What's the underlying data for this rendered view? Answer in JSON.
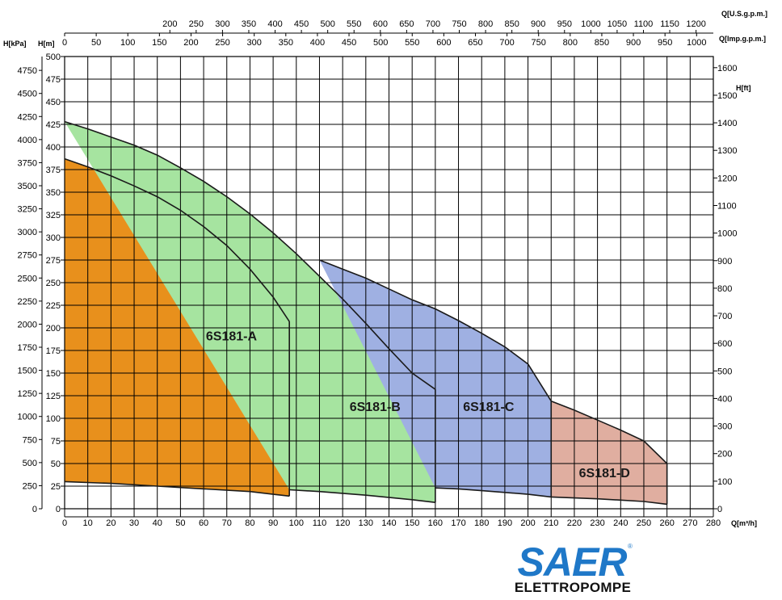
{
  "axes": {
    "h_kpa_label": "H[kPa]",
    "h_m_label": "H[m]",
    "h_ft_label": "H[ft]",
    "q_m3h_label": "Q[m³/h]",
    "q_usgpm_label": "Q[U.S.g.p.m.]",
    "q_impgpm_label": "Q[Imp.g.p.m.]"
  },
  "chart_data": {
    "type": "area",
    "title": "",
    "xlabel": "Q[m³/h]",
    "ylabel": "H[m]",
    "xlim": [
      0,
      280
    ],
    "ylim": [
      0,
      500
    ],
    "x_ticks": [
      0,
      10,
      20,
      30,
      40,
      50,
      60,
      70,
      80,
      90,
      100,
      110,
      120,
      130,
      140,
      150,
      160,
      170,
      180,
      190,
      200,
      210,
      220,
      230,
      240,
      250,
      260,
      270,
      280
    ],
    "y_m_ticks": [
      0,
      25,
      50,
      75,
      100,
      125,
      150,
      175,
      200,
      225,
      250,
      275,
      300,
      325,
      350,
      375,
      400,
      425,
      450,
      475,
      500
    ],
    "y_kpa_ticks": [
      0,
      250,
      500,
      750,
      1000,
      1250,
      1500,
      1750,
      2000,
      2250,
      2500,
      2750,
      3000,
      3250,
      3500,
      3750,
      4000,
      4250,
      4500,
      4750
    ],
    "y_ft_ticks": [
      0,
      100,
      200,
      300,
      400,
      500,
      600,
      700,
      800,
      900,
      1000,
      1100,
      1200,
      1300,
      1400,
      1500,
      1600
    ],
    "x_usgpm_ticks": [
      200,
      250,
      300,
      350,
      400,
      450,
      500,
      550,
      600,
      650,
      700,
      750,
      800,
      850,
      900,
      950,
      1000,
      1050,
      1100,
      1150,
      1200
    ],
    "x_impgpm_ticks": [
      0,
      50,
      100,
      150,
      200,
      250,
      300,
      350,
      400,
      450,
      500,
      550,
      600,
      650,
      700,
      750,
      800,
      850,
      900,
      950,
      1000
    ],
    "grid": true,
    "series": [
      {
        "name": "6S181-A",
        "color": "#e8901c",
        "upper": [
          [
            0,
            387
          ],
          [
            10,
            378
          ],
          [
            20,
            368
          ],
          [
            30,
            357
          ],
          [
            40,
            345
          ],
          [
            50,
            330
          ],
          [
            60,
            312
          ],
          [
            70,
            291
          ],
          [
            80,
            265
          ],
          [
            90,
            234
          ],
          [
            97,
            207
          ]
        ],
        "lower": [
          [
            0,
            30
          ],
          [
            20,
            28
          ],
          [
            40,
            25
          ],
          [
            60,
            22
          ],
          [
            80,
            19
          ],
          [
            90,
            16
          ],
          [
            97,
            14
          ]
        ]
      },
      {
        "name": "6S181-B",
        "color": "#a6e4a0",
        "upper": [
          [
            0,
            428
          ],
          [
            10,
            420
          ],
          [
            20,
            411
          ],
          [
            30,
            402
          ],
          [
            40,
            391
          ],
          [
            50,
            377
          ],
          [
            60,
            362
          ],
          [
            70,
            345
          ],
          [
            80,
            326
          ],
          [
            90,
            305
          ],
          [
            100,
            282
          ],
          [
            110,
            257
          ],
          [
            120,
            232
          ],
          [
            130,
            205
          ],
          [
            140,
            177
          ],
          [
            150,
            150
          ],
          [
            160,
            132
          ]
        ],
        "lower": [
          [
            97,
            21
          ],
          [
            110,
            19
          ],
          [
            130,
            15
          ],
          [
            150,
            10
          ],
          [
            160,
            7
          ]
        ]
      },
      {
        "name": "6S181-C",
        "color": "#9fb0e2",
        "upper": [
          [
            110,
            275
          ],
          [
            120,
            265
          ],
          [
            130,
            255
          ],
          [
            140,
            243
          ],
          [
            150,
            231
          ],
          [
            160,
            221
          ],
          [
            170,
            208
          ],
          [
            180,
            194
          ],
          [
            190,
            179
          ],
          [
            200,
            160
          ],
          [
            210,
            119
          ]
        ],
        "lower": [
          [
            160,
            23
          ],
          [
            170,
            22
          ],
          [
            180,
            20
          ],
          [
            190,
            18
          ],
          [
            200,
            16
          ],
          [
            210,
            13
          ]
        ]
      },
      {
        "name": "6S181-D",
        "color": "#e0aea0",
        "upper": [
          [
            210,
            119
          ],
          [
            220,
            109
          ],
          [
            230,
            98
          ],
          [
            240,
            87
          ],
          [
            250,
            75
          ],
          [
            260,
            50
          ]
        ],
        "lower": [
          [
            210,
            13
          ],
          [
            230,
            11
          ],
          [
            250,
            8
          ],
          [
            260,
            5
          ]
        ]
      }
    ],
    "annotations": [
      {
        "text": "6S181-A",
        "x": 72,
        "y": 186
      },
      {
        "text": "6S181-B",
        "x": 134,
        "y": 108
      },
      {
        "text": "6S181-C",
        "x": 183,
        "y": 108
      },
      {
        "text": "6S181-D",
        "x": 233,
        "y": 35
      }
    ]
  },
  "logo": {
    "brand": "SAER",
    "registered": "®",
    "subtitle": "ELETTROPOMPE"
  }
}
